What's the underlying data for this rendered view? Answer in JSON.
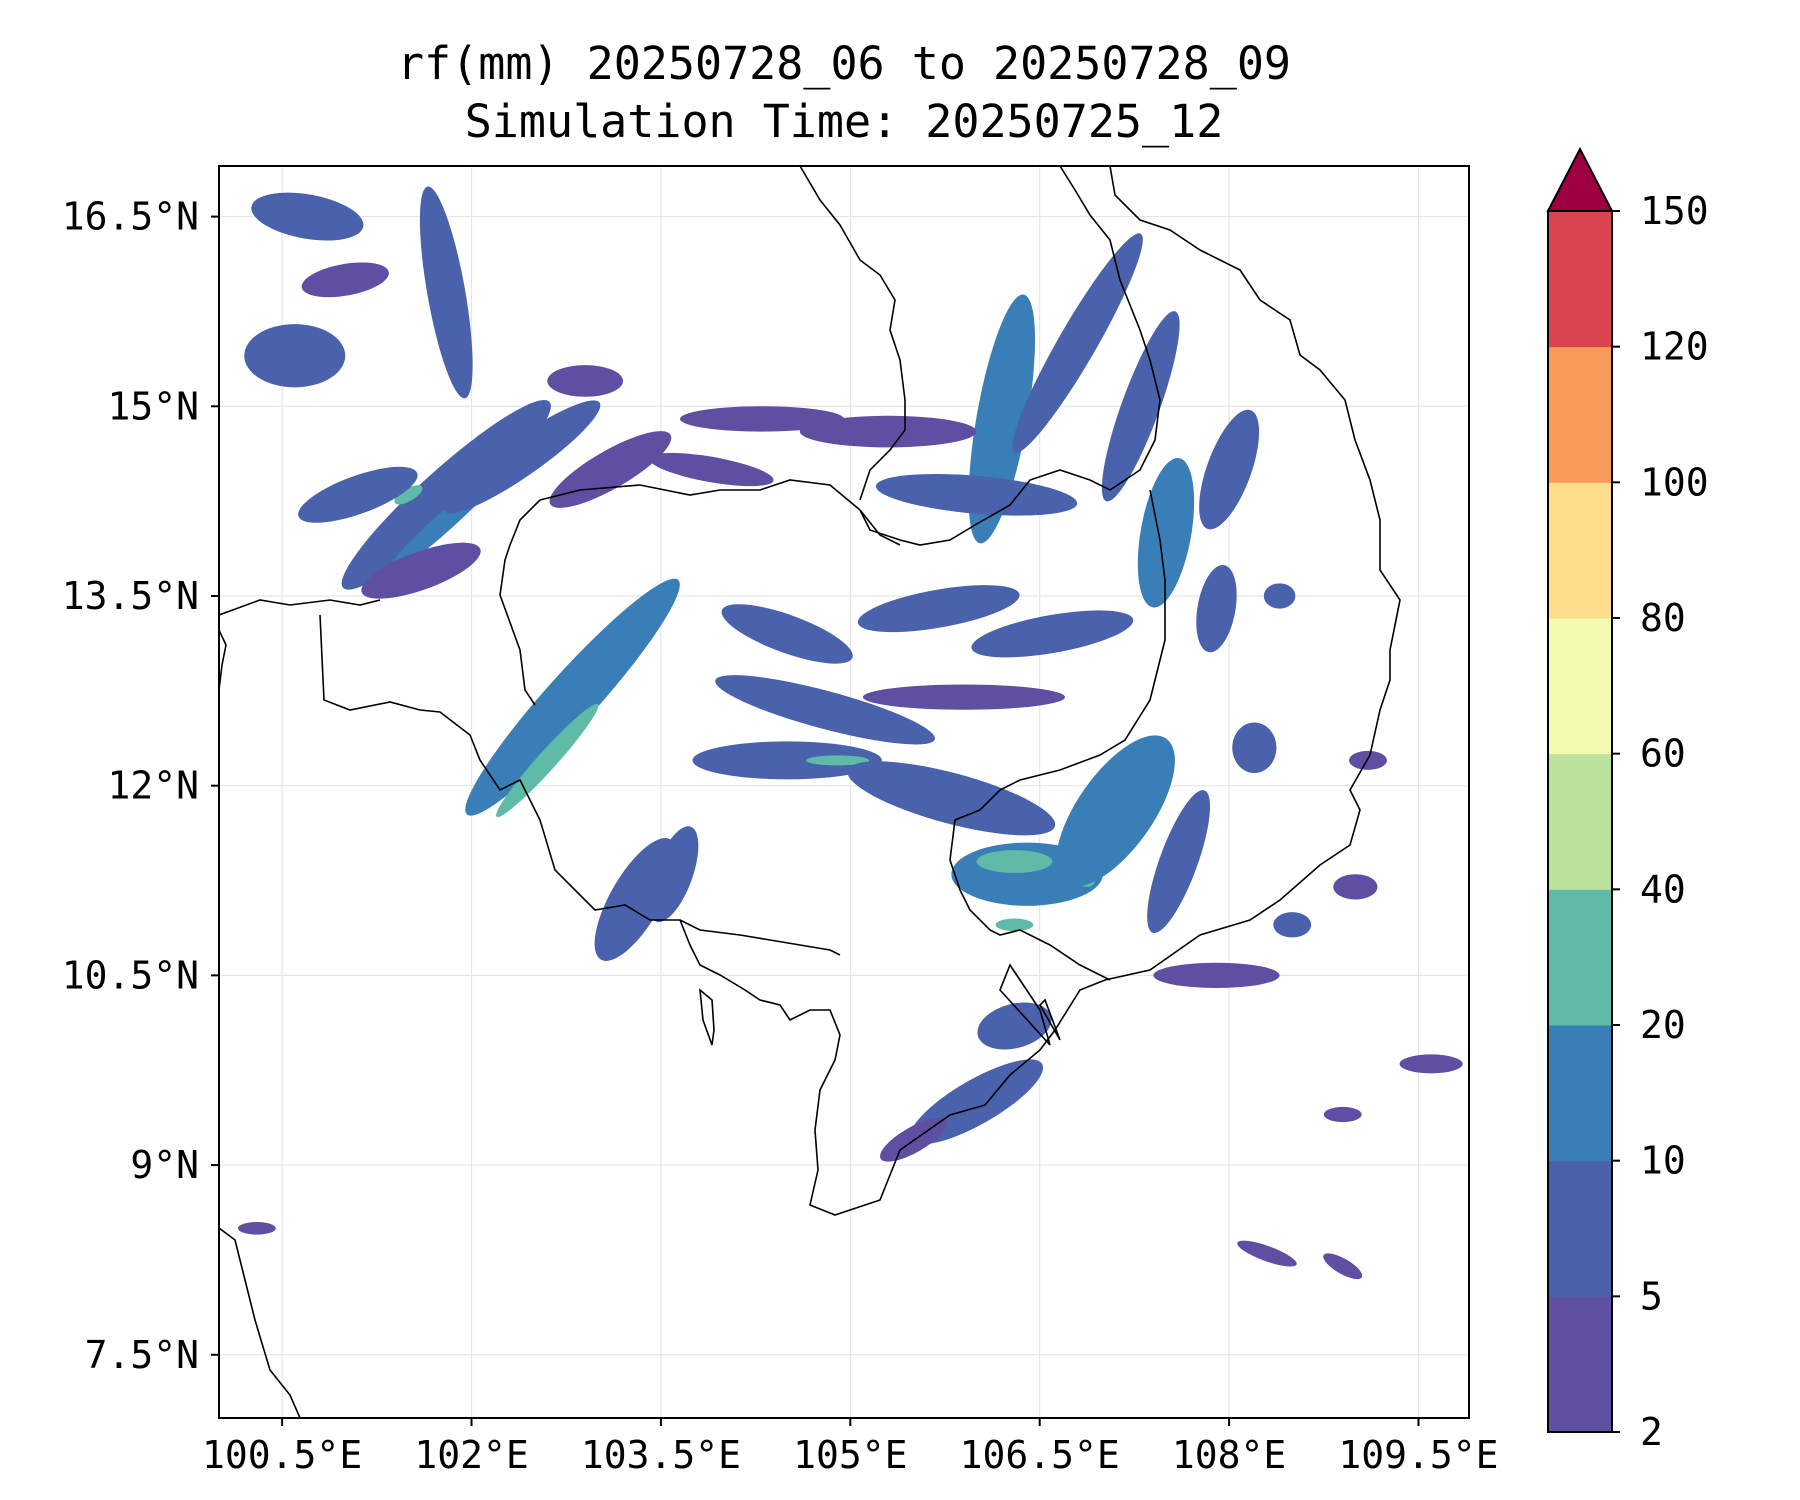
{
  "title": {
    "line1": "rf(mm) 20250728_06 to 20250728_09",
    "line2": "Simulation Time: 20250725_12"
  },
  "map": {
    "lon_range": [
      100.0,
      109.9
    ],
    "lat_range": [
      7.0,
      16.9
    ],
    "lon_ticks": [
      {
        "value": 100.5,
        "label": "100.5°E"
      },
      {
        "value": 102.0,
        "label": "102°E"
      },
      {
        "value": 103.5,
        "label": "103.5°E"
      },
      {
        "value": 105.0,
        "label": "105°E"
      },
      {
        "value": 106.5,
        "label": "106.5°E"
      },
      {
        "value": 108.0,
        "label": "108°E"
      },
      {
        "value": 109.5,
        "label": "109.5°E"
      }
    ],
    "lat_ticks": [
      {
        "value": 7.5,
        "label": "7.5°N"
      },
      {
        "value": 9.0,
        "label": "9°N"
      },
      {
        "value": 10.5,
        "label": "10.5°N"
      },
      {
        "value": 12.0,
        "label": "12°N"
      },
      {
        "value": 13.5,
        "label": "13.5°N"
      },
      {
        "value": 15.0,
        "label": "15°N"
      },
      {
        "value": 16.5,
        "label": "16.5°N"
      }
    ],
    "grid": true
  },
  "colorbar": {
    "levels": [
      "2",
      "5",
      "10",
      "20",
      "40",
      "60",
      "80",
      "100",
      "120",
      "150"
    ],
    "colors": [
      "#5e4fa2",
      "#4a62ac",
      "#3a7eb8",
      "#5fbaa7",
      "#bce29b",
      "#f4fbb1",
      "#fbdd8c",
      "#f89b59",
      "#d9444e"
    ],
    "extend_color": "#9e0142"
  },
  "chart_data": {
    "type": "heatmap",
    "variable": "rf(mm)",
    "xlim": [
      100.0,
      109.9
    ],
    "ylim": [
      7.0,
      16.9
    ],
    "rain_features": [
      {
        "lon": 100.7,
        "lat": 16.5,
        "w": 0.9,
        "h": 0.35,
        "angle": -10,
        "level": 1
      },
      {
        "lon": 100.6,
        "lat": 15.4,
        "w": 0.8,
        "h": 0.5,
        "angle": 0,
        "level": 1
      },
      {
        "lon": 101.0,
        "lat": 16.0,
        "w": 0.7,
        "h": 0.25,
        "angle": 10,
        "level": 0
      },
      {
        "lon": 101.8,
        "lat": 15.9,
        "w": 0.3,
        "h": 1.7,
        "angle": 10,
        "level": 1
      },
      {
        "lon": 101.8,
        "lat": 14.3,
        "w": 2.2,
        "h": 0.4,
        "angle": 42,
        "level": 1
      },
      {
        "lon": 101.8,
        "lat": 14.1,
        "w": 1.3,
        "h": 0.15,
        "angle": 42,
        "level": 2
      },
      {
        "lon": 101.5,
        "lat": 14.3,
        "w": 0.25,
        "h": 0.1,
        "angle": 30,
        "level": 3
      },
      {
        "lon": 101.1,
        "lat": 14.3,
        "w": 1.0,
        "h": 0.3,
        "angle": 20,
        "level": 1
      },
      {
        "lon": 101.6,
        "lat": 13.7,
        "w": 1.0,
        "h": 0.3,
        "angle": 20,
        "level": 0
      },
      {
        "lon": 102.4,
        "lat": 14.6,
        "w": 1.5,
        "h": 0.3,
        "angle": 35,
        "level": 1
      },
      {
        "lon": 103.1,
        "lat": 14.5,
        "w": 1.1,
        "h": 0.3,
        "angle": 30,
        "level": 0
      },
      {
        "lon": 102.9,
        "lat": 15.2,
        "w": 0.6,
        "h": 0.25,
        "angle": 0,
        "level": 0
      },
      {
        "lon": 102.8,
        "lat": 12.7,
        "w": 2.5,
        "h": 0.4,
        "angle": 48,
        "level": 2
      },
      {
        "lon": 102.6,
        "lat": 12.2,
        "w": 1.2,
        "h": 0.15,
        "angle": 48,
        "level": 3
      },
      {
        "lon": 103.3,
        "lat": 11.1,
        "w": 1.1,
        "h": 0.4,
        "angle": 60,
        "level": 1
      },
      {
        "lon": 103.6,
        "lat": 11.3,
        "w": 0.8,
        "h": 0.3,
        "angle": 70,
        "level": 1
      },
      {
        "lon": 104.5,
        "lat": 13.2,
        "w": 1.1,
        "h": 0.3,
        "angle": -20,
        "level": 1
      },
      {
        "lon": 104.8,
        "lat": 12.6,
        "w": 1.8,
        "h": 0.3,
        "angle": -15,
        "level": 1
      },
      {
        "lon": 104.5,
        "lat": 12.2,
        "w": 1.5,
        "h": 0.3,
        "angle": 0,
        "level": 1
      },
      {
        "lon": 104.9,
        "lat": 12.2,
        "w": 0.5,
        "h": 0.08,
        "angle": 0,
        "level": 3
      },
      {
        "lon": 105.8,
        "lat": 11.9,
        "w": 1.7,
        "h": 0.4,
        "angle": -15,
        "level": 1
      },
      {
        "lon": 106.4,
        "lat": 11.3,
        "w": 1.2,
        "h": 0.5,
        "angle": 0,
        "level": 2
      },
      {
        "lon": 106.3,
        "lat": 11.4,
        "w": 0.6,
        "h": 0.18,
        "angle": 0,
        "level": 3
      },
      {
        "lon": 106.8,
        "lat": 11.3,
        "w": 0.3,
        "h": 0.15,
        "angle": -30,
        "level": 3
      },
      {
        "lon": 107.1,
        "lat": 11.8,
        "w": 1.4,
        "h": 0.6,
        "angle": 55,
        "level": 2
      },
      {
        "lon": 106.3,
        "lat": 10.9,
        "w": 0.3,
        "h": 0.1,
        "angle": 0,
        "level": 3
      },
      {
        "lon": 106.2,
        "lat": 14.9,
        "w": 2.0,
        "h": 0.4,
        "angle": 80,
        "level": 2
      },
      {
        "lon": 106.8,
        "lat": 15.5,
        "w": 2.0,
        "h": 0.3,
        "angle": 60,
        "level": 1
      },
      {
        "lon": 107.3,
        "lat": 15.0,
        "w": 1.6,
        "h": 0.3,
        "angle": 70,
        "level": 1
      },
      {
        "lon": 107.5,
        "lat": 14.0,
        "w": 1.2,
        "h": 0.4,
        "angle": 80,
        "level": 2
      },
      {
        "lon": 108.0,
        "lat": 14.5,
        "w": 1.0,
        "h": 0.35,
        "angle": 70,
        "level": 1
      },
      {
        "lon": 107.9,
        "lat": 13.4,
        "w": 0.7,
        "h": 0.3,
        "angle": 80,
        "level": 1
      },
      {
        "lon": 106.0,
        "lat": 14.3,
        "w": 1.6,
        "h": 0.3,
        "angle": -5,
        "level": 1
      },
      {
        "lon": 105.3,
        "lat": 14.8,
        "w": 1.4,
        "h": 0.25,
        "angle": 0,
        "level": 0
      },
      {
        "lon": 104.3,
        "lat": 14.9,
        "w": 1.3,
        "h": 0.2,
        "angle": 0,
        "level": 0
      },
      {
        "lon": 103.9,
        "lat": 14.5,
        "w": 1.0,
        "h": 0.2,
        "angle": -10,
        "level": 0
      },
      {
        "lon": 105.7,
        "lat": 13.4,
        "w": 1.3,
        "h": 0.3,
        "angle": 10,
        "level": 1
      },
      {
        "lon": 106.6,
        "lat": 13.2,
        "w": 1.3,
        "h": 0.3,
        "angle": 10,
        "level": 1
      },
      {
        "lon": 105.9,
        "lat": 12.7,
        "w": 1.6,
        "h": 0.2,
        "angle": 0,
        "level": 0
      },
      {
        "lon": 106.3,
        "lat": 10.1,
        "w": 0.6,
        "h": 0.35,
        "angle": 15,
        "level": 1
      },
      {
        "lon": 106.0,
        "lat": 9.5,
        "w": 1.2,
        "h": 0.35,
        "angle": 30,
        "level": 1
      },
      {
        "lon": 105.5,
        "lat": 9.2,
        "w": 0.6,
        "h": 0.2,
        "angle": 30,
        "level": 0
      },
      {
        "lon": 108.2,
        "lat": 12.3,
        "w": 0.35,
        "h": 0.4,
        "angle": 0,
        "level": 1
      },
      {
        "lon": 108.4,
        "lat": 13.5,
        "w": 0.25,
        "h": 0.2,
        "angle": 0,
        "level": 1
      },
      {
        "lon": 107.6,
        "lat": 11.4,
        "w": 1.2,
        "h": 0.3,
        "angle": 70,
        "level": 1
      },
      {
        "lon": 107.9,
        "lat": 10.5,
        "w": 1.0,
        "h": 0.2,
        "angle": 0,
        "level": 0
      },
      {
        "lon": 109.0,
        "lat": 11.2,
        "w": 0.35,
        "h": 0.2,
        "angle": 0,
        "level": 0
      },
      {
        "lon": 108.5,
        "lat": 10.9,
        "w": 0.3,
        "h": 0.2,
        "angle": 0,
        "level": 1
      },
      {
        "lon": 109.1,
        "lat": 12.2,
        "w": 0.3,
        "h": 0.15,
        "angle": 0,
        "level": 0
      },
      {
        "lon": 109.6,
        "lat": 9.8,
        "w": 0.5,
        "h": 0.15,
        "angle": 0,
        "level": 0
      },
      {
        "lon": 108.9,
        "lat": 9.4,
        "w": 0.3,
        "h": 0.12,
        "angle": 0,
        "level": 0
      },
      {
        "lon": 108.3,
        "lat": 8.3,
        "w": 0.5,
        "h": 0.12,
        "angle": -20,
        "level": 0
      },
      {
        "lon": 108.9,
        "lat": 8.2,
        "w": 0.35,
        "h": 0.12,
        "angle": -30,
        "level": 0
      },
      {
        "lon": 100.3,
        "lat": 8.5,
        "w": 0.3,
        "h": 0.1,
        "angle": 0,
        "level": 0
      }
    ]
  }
}
